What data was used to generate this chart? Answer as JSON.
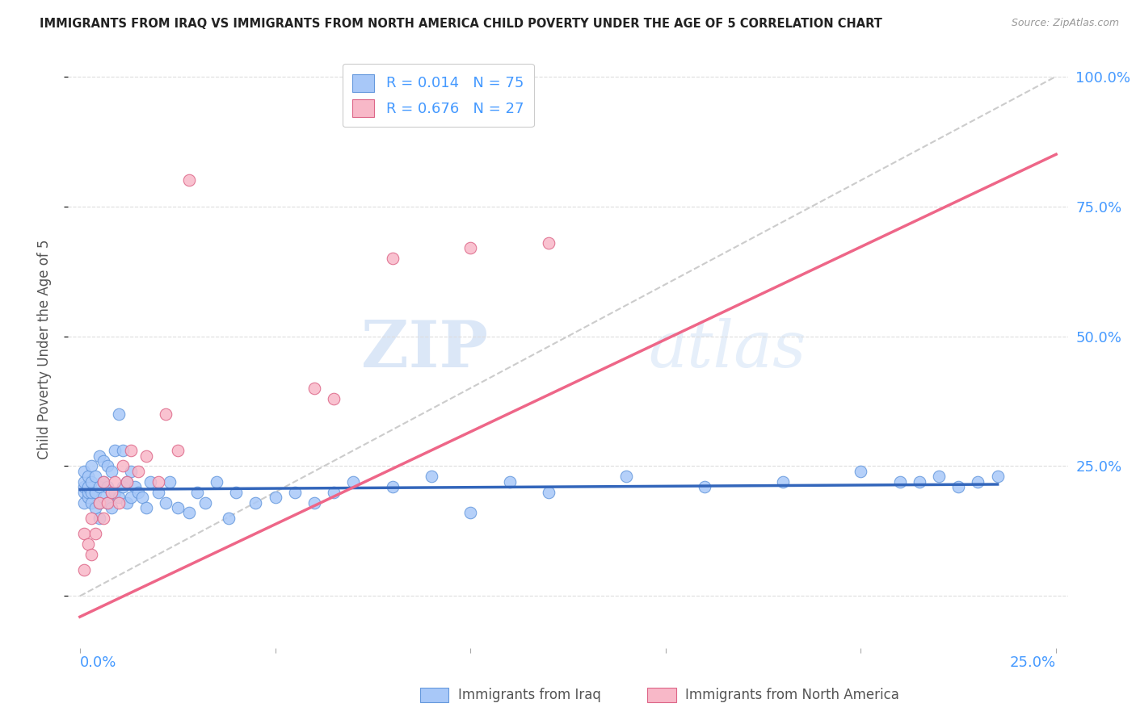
{
  "title": "IMMIGRANTS FROM IRAQ VS IMMIGRANTS FROM NORTH AMERICA CHILD POVERTY UNDER THE AGE OF 5 CORRELATION CHART",
  "source": "Source: ZipAtlas.com",
  "ylabel": "Child Poverty Under the Age of 5",
  "color_iraq": "#A8C8F8",
  "color_iraq_edge": "#6699DD",
  "color_na": "#F8B8C8",
  "color_na_edge": "#DD6688",
  "color_iraq_line": "#3366BB",
  "color_na_line": "#EE6688",
  "color_diag_line": "#CCCCCC",
  "background_color": "#FFFFFF",
  "watermark_color": "#DCE8F8",
  "grid_color": "#DDDDDD",
  "title_color": "#222222",
  "source_color": "#999999",
  "axis_label_color": "#4499FF",
  "ylabel_color": "#555555",
  "legend_text_color": "#4499FF",
  "bottom_legend_color": "#555555",
  "iraq_x": [
    0.001,
    0.001,
    0.001,
    0.001,
    0.001,
    0.002,
    0.002,
    0.002,
    0.002,
    0.003,
    0.003,
    0.003,
    0.003,
    0.004,
    0.004,
    0.004,
    0.005,
    0.005,
    0.005,
    0.005,
    0.006,
    0.006,
    0.006,
    0.007,
    0.007,
    0.007,
    0.008,
    0.008,
    0.008,
    0.009,
    0.009,
    0.01,
    0.01,
    0.011,
    0.011,
    0.012,
    0.012,
    0.013,
    0.013,
    0.014,
    0.015,
    0.016,
    0.017,
    0.018,
    0.02,
    0.022,
    0.023,
    0.025,
    0.028,
    0.03,
    0.032,
    0.035,
    0.038,
    0.04,
    0.045,
    0.05,
    0.055,
    0.06,
    0.065,
    0.07,
    0.08,
    0.09,
    0.1,
    0.11,
    0.12,
    0.14,
    0.16,
    0.18,
    0.2,
    0.21,
    0.215,
    0.22,
    0.225,
    0.23,
    0.235
  ],
  "iraq_y": [
    0.18,
    0.2,
    0.21,
    0.22,
    0.24,
    0.19,
    0.2,
    0.21,
    0.23,
    0.18,
    0.2,
    0.22,
    0.25,
    0.17,
    0.2,
    0.23,
    0.15,
    0.18,
    0.21,
    0.27,
    0.19,
    0.22,
    0.26,
    0.18,
    0.21,
    0.25,
    0.17,
    0.2,
    0.24,
    0.2,
    0.28,
    0.19,
    0.35,
    0.21,
    0.28,
    0.18,
    0.22,
    0.19,
    0.24,
    0.21,
    0.2,
    0.19,
    0.17,
    0.22,
    0.2,
    0.18,
    0.22,
    0.17,
    0.16,
    0.2,
    0.18,
    0.22,
    0.15,
    0.2,
    0.18,
    0.19,
    0.2,
    0.18,
    0.2,
    0.22,
    0.21,
    0.23,
    0.16,
    0.22,
    0.2,
    0.23,
    0.21,
    0.22,
    0.24,
    0.22,
    0.22,
    0.23,
    0.21,
    0.22,
    0.23
  ],
  "na_x": [
    0.001,
    0.001,
    0.002,
    0.003,
    0.003,
    0.004,
    0.005,
    0.006,
    0.006,
    0.007,
    0.008,
    0.009,
    0.01,
    0.011,
    0.012,
    0.013,
    0.015,
    0.017,
    0.02,
    0.022,
    0.025,
    0.028,
    0.06,
    0.065,
    0.08,
    0.1,
    0.12
  ],
  "na_y": [
    0.05,
    0.12,
    0.1,
    0.08,
    0.15,
    0.12,
    0.18,
    0.15,
    0.22,
    0.18,
    0.2,
    0.22,
    0.18,
    0.25,
    0.22,
    0.28,
    0.24,
    0.27,
    0.22,
    0.35,
    0.28,
    0.8,
    0.4,
    0.38,
    0.65,
    0.67,
    0.68
  ],
  "iraq_line_x": [
    0.0,
    0.235
  ],
  "iraq_line_y": [
    0.205,
    0.215
  ],
  "na_line_x": [
    0.0,
    0.25
  ],
  "na_line_y": [
    -0.04,
    0.85
  ],
  "diag_line_x": [
    0.0,
    0.25
  ],
  "diag_line_y": [
    0.0,
    1.0
  ],
  "xlim": [
    -0.003,
    0.253
  ],
  "ylim": [
    -0.1,
    1.05
  ],
  "xtick_positions": [
    0.0,
    0.05,
    0.1,
    0.15,
    0.2,
    0.25
  ],
  "ytick_positions": [
    0.0,
    0.25,
    0.5,
    0.75,
    1.0
  ],
  "ytick_labels": [
    "",
    "25.0%",
    "50.0%",
    "75.0%",
    "100.0%"
  ]
}
